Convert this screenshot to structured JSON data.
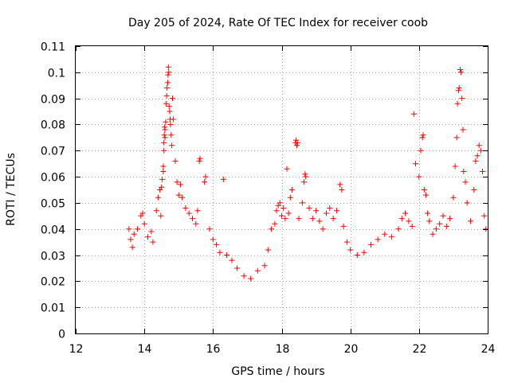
{
  "chart_data": {
    "type": "scatter",
    "title": "Day 205 of 2024, Rate Of TEC Index for receiver coob",
    "xlabel": "GPS time / hours",
    "ylabel": "ROTI / TECUs",
    "xlim": [
      12,
      24
    ],
    "ylim": [
      0,
      0.11
    ],
    "xticks": [
      "12",
      "14",
      "16",
      "18",
      "20",
      "22",
      "24"
    ],
    "yticks": [
      "0",
      "0.01",
      "0.02",
      "0.03",
      "0.04",
      "0.05",
      "0.06",
      "0.07",
      "0.08",
      "0.09",
      "0.1",
      "0.11"
    ],
    "grid": true,
    "marker": "+",
    "color": "#ff0000",
    "series": [
      {
        "name": "ROTI",
        "points": [
          [
            13.55,
            0.04
          ],
          [
            13.6,
            0.036
          ],
          [
            13.65,
            0.033
          ],
          [
            13.7,
            0.038
          ],
          [
            13.8,
            0.04
          ],
          [
            13.9,
            0.045
          ],
          [
            13.95,
            0.046
          ],
          [
            14.0,
            0.042
          ],
          [
            14.1,
            0.037
          ],
          [
            14.2,
            0.039
          ],
          [
            14.25,
            0.035
          ],
          [
            14.35,
            0.047
          ],
          [
            14.4,
            0.052
          ],
          [
            14.45,
            0.055
          ],
          [
            14.48,
            0.045
          ],
          [
            14.5,
            0.056
          ],
          [
            14.52,
            0.059
          ],
          [
            14.55,
            0.062
          ],
          [
            14.55,
            0.064
          ],
          [
            14.57,
            0.07
          ],
          [
            14.57,
            0.073
          ],
          [
            14.58,
            0.076
          ],
          [
            14.59,
            0.079
          ],
          [
            14.6,
            0.075
          ],
          [
            14.6,
            0.078
          ],
          [
            14.62,
            0.081
          ],
          [
            14.63,
            0.088
          ],
          [
            14.65,
            0.091
          ],
          [
            14.66,
            0.094
          ],
          [
            14.68,
            0.096
          ],
          [
            14.69,
            0.099
          ],
          [
            14.7,
            0.102
          ],
          [
            14.71,
            0.1
          ],
          [
            14.72,
            0.087
          ],
          [
            14.74,
            0.085
          ],
          [
            14.75,
            0.082
          ],
          [
            14.76,
            0.08
          ],
          [
            14.78,
            0.076
          ],
          [
            14.8,
            0.072
          ],
          [
            14.82,
            0.09
          ],
          [
            14.84,
            0.082
          ],
          [
            14.9,
            0.066
          ],
          [
            14.95,
            0.058
          ],
          [
            15.0,
            0.053
          ],
          [
            15.05,
            0.057
          ],
          [
            15.1,
            0.052
          ],
          [
            15.2,
            0.048
          ],
          [
            15.3,
            0.046
          ],
          [
            15.4,
            0.044
          ],
          [
            15.5,
            0.042
          ],
          [
            15.55,
            0.047
          ],
          [
            15.6,
            0.066
          ],
          [
            15.62,
            0.067
          ],
          [
            15.75,
            0.058
          ],
          [
            15.78,
            0.06
          ],
          [
            15.9,
            0.04
          ],
          [
            16.0,
            0.036
          ],
          [
            16.1,
            0.034
          ],
          [
            16.2,
            0.031
          ],
          [
            16.3,
            0.059
          ],
          [
            16.4,
            0.03
          ],
          [
            16.55,
            0.028
          ],
          [
            16.7,
            0.025
          ],
          [
            16.9,
            0.022
          ],
          [
            17.1,
            0.021
          ],
          [
            17.3,
            0.024
          ],
          [
            17.5,
            0.026
          ],
          [
            17.6,
            0.032
          ],
          [
            17.7,
            0.04
          ],
          [
            17.8,
            0.042
          ],
          [
            17.85,
            0.047
          ],
          [
            17.9,
            0.049
          ],
          [
            17.95,
            0.05
          ],
          [
            18.0,
            0.045
          ],
          [
            18.05,
            0.048
          ],
          [
            18.1,
            0.044
          ],
          [
            18.15,
            0.063
          ],
          [
            18.2,
            0.046
          ],
          [
            18.25,
            0.052
          ],
          [
            18.3,
            0.055
          ],
          [
            18.4,
            0.073
          ],
          [
            18.42,
            0.074
          ],
          [
            18.44,
            0.072
          ],
          [
            18.46,
            0.073
          ],
          [
            18.5,
            0.044
          ],
          [
            18.6,
            0.05
          ],
          [
            18.65,
            0.058
          ],
          [
            18.68,
            0.061
          ],
          [
            18.7,
            0.06
          ],
          [
            18.8,
            0.048
          ],
          [
            18.9,
            0.044
          ],
          [
            19.0,
            0.047
          ],
          [
            19.1,
            0.043
          ],
          [
            19.2,
            0.04
          ],
          [
            19.3,
            0.046
          ],
          [
            19.4,
            0.048
          ],
          [
            19.5,
            0.044
          ],
          [
            19.6,
            0.047
          ],
          [
            19.7,
            0.057
          ],
          [
            19.75,
            0.055
          ],
          [
            19.8,
            0.041
          ],
          [
            19.9,
            0.035
          ],
          [
            20.0,
            0.032
          ],
          [
            20.2,
            0.03
          ],
          [
            20.4,
            0.031
          ],
          [
            20.6,
            0.034
          ],
          [
            20.8,
            0.036
          ],
          [
            21.0,
            0.038
          ],
          [
            21.2,
            0.037
          ],
          [
            21.4,
            0.04
          ],
          [
            21.5,
            0.044
          ],
          [
            21.6,
            0.046
          ],
          [
            21.7,
            0.043
          ],
          [
            21.8,
            0.041
          ],
          [
            21.85,
            0.084
          ],
          [
            21.9,
            0.065
          ],
          [
            22.0,
            0.06
          ],
          [
            22.05,
            0.07
          ],
          [
            22.1,
            0.075
          ],
          [
            22.12,
            0.076
          ],
          [
            22.15,
            0.055
          ],
          [
            22.2,
            0.053
          ],
          [
            22.25,
            0.046
          ],
          [
            22.3,
            0.043
          ],
          [
            22.4,
            0.038
          ],
          [
            22.5,
            0.04
          ],
          [
            22.6,
            0.042
          ],
          [
            22.7,
            0.045
          ],
          [
            22.8,
            0.041
          ],
          [
            22.9,
            0.044
          ],
          [
            23.0,
            0.052
          ],
          [
            23.05,
            0.064
          ],
          [
            23.1,
            0.075
          ],
          [
            23.12,
            0.088
          ],
          [
            23.15,
            0.093
          ],
          [
            23.17,
            0.094
          ],
          [
            23.2,
            0.101
          ],
          [
            23.22,
            0.1
          ],
          [
            23.25,
            0.09
          ],
          [
            23.28,
            0.078
          ],
          [
            23.3,
            0.062
          ],
          [
            23.35,
            0.058
          ],
          [
            23.4,
            0.05
          ],
          [
            23.5,
            0.043
          ],
          [
            23.6,
            0.055
          ],
          [
            23.65,
            0.066
          ],
          [
            23.7,
            0.068
          ],
          [
            23.75,
            0.072
          ],
          [
            23.8,
            0.07
          ],
          [
            23.85,
            0.062
          ],
          [
            23.9,
            0.045
          ],
          [
            23.95,
            0.04
          ]
        ]
      }
    ]
  }
}
